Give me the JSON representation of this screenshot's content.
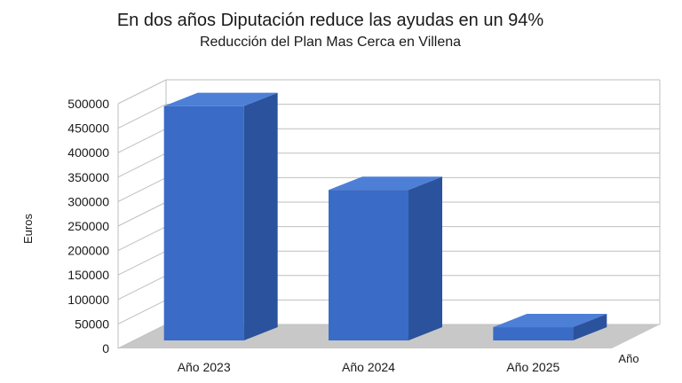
{
  "chart_data": {
    "type": "bar",
    "title": "En dos años Diputación reduce las ayudas en un 94%",
    "subtitle": "Reducción del Plan Mas Cerca en Villena",
    "xlabel": "Año",
    "ylabel": "Euros",
    "categories": [
      "Año 2023",
      "Año 2024",
      "Año 2025"
    ],
    "values": [
      495000,
      318000,
      28000
    ],
    "ylim": [
      0,
      500000
    ],
    "yticks": [
      "0",
      "50000",
      "100000",
      "150000",
      "200000",
      "250000",
      "300000",
      "350000",
      "400000",
      "450000",
      "500000"
    ],
    "grid": true,
    "style": "3d-column",
    "colors": {
      "bar_front": "#3a6bc6",
      "bar_side": "#2b529c",
      "bar_top": "#4d7fd6",
      "floor": "#c8c8c8",
      "grid": "#bfbfbf"
    }
  }
}
